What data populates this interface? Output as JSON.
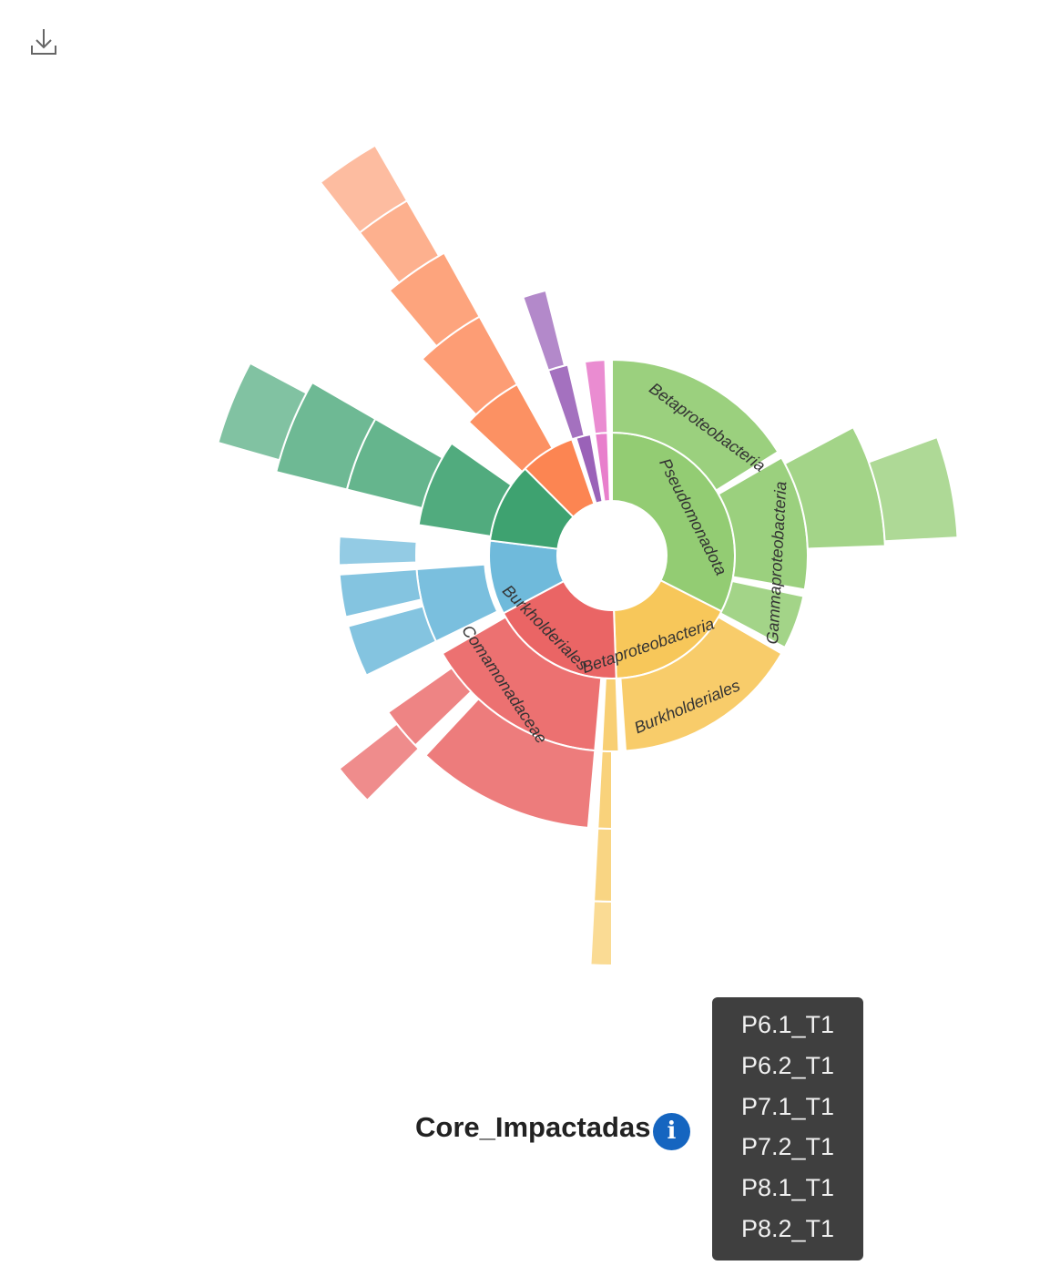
{
  "toolbar": {
    "download_icon": "download-icon"
  },
  "chart_data": {
    "type": "sunburst",
    "title": "",
    "labels": {
      "pseudomonadota": "Pseudomonadota",
      "betaproteobacteria_outer": "Betaproteobacteria",
      "gammaproteobacteria": "Gammaproteobacteria",
      "betaproteobacteria_inner": "Betaproteobacteria",
      "burkholderiales_yellow": "Burkholderiales",
      "burkholderiales_red": "Burkholderiales",
      "comamonadaceae": "Comamonadaceae"
    },
    "colors": {
      "green": "#93cc73",
      "yellow": "#f7c75a",
      "red": "#ea6565",
      "blue": "#6fbadb",
      "teal": "#3ea270",
      "orange": "#fc8552",
      "purple": "#9a62b8",
      "pink": "#e87fcc"
    }
  },
  "footer": {
    "title": "Core_Impactadas",
    "info_icon": "info-icon"
  },
  "tooltip": {
    "items": [
      "P6.1_T1",
      "P6.2_T1",
      "P7.1_T1",
      "P7.2_T1",
      "P8.1_T1",
      "P8.2_T1"
    ]
  }
}
